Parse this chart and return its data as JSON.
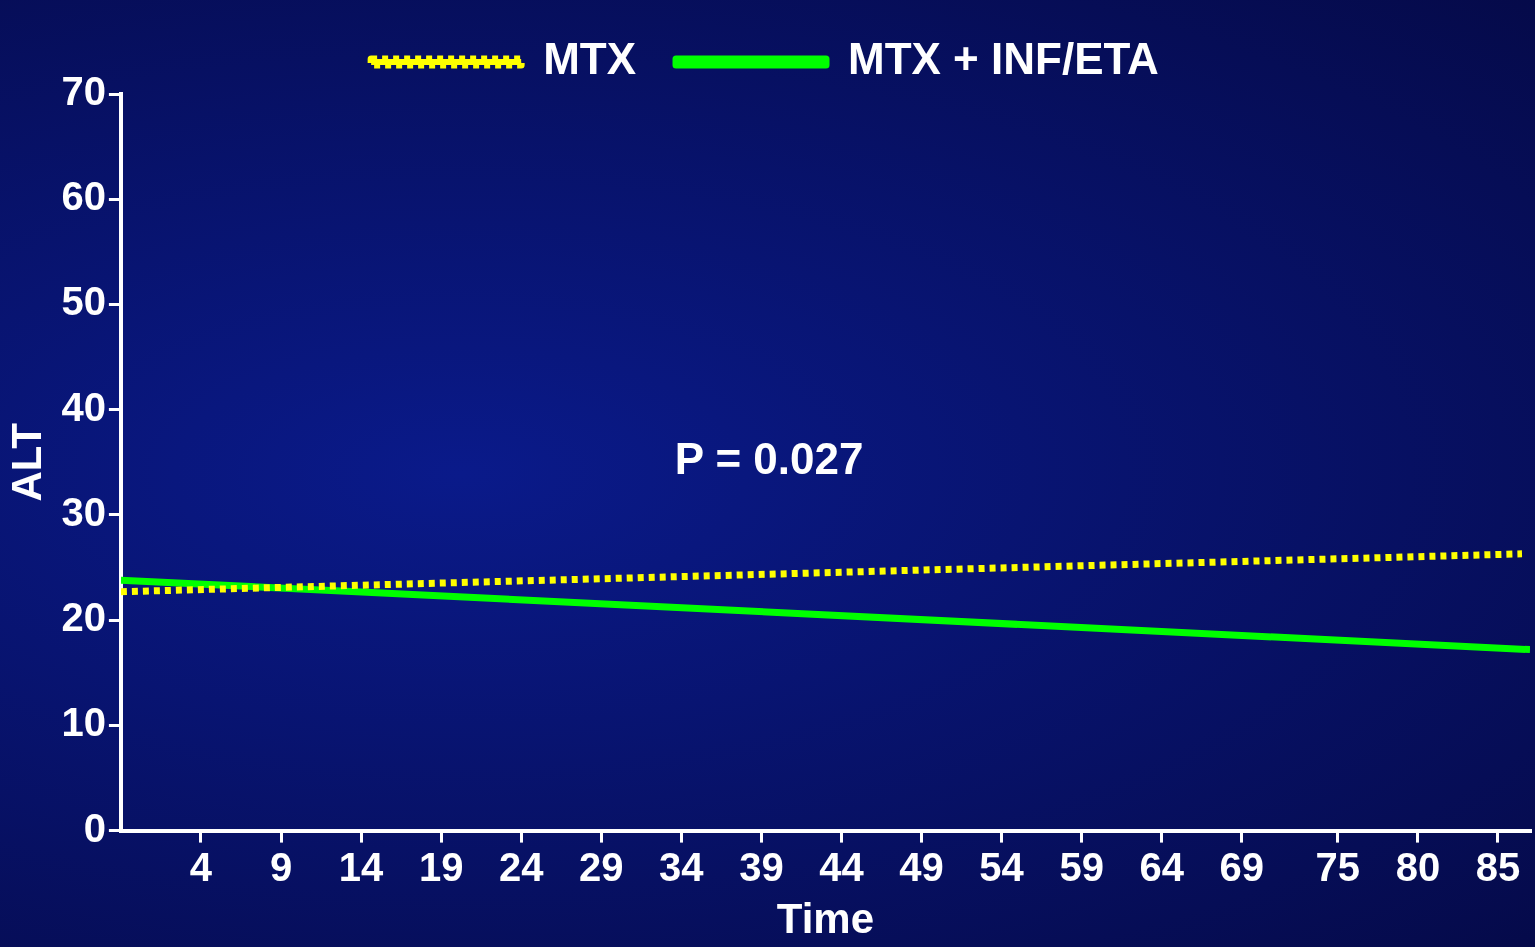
{
  "chart_data": {
    "type": "line",
    "xlabel": "Time",
    "ylabel": "ALT",
    "xlim": [
      -1,
      87
    ],
    "xticks": [
      4,
      9,
      14,
      19,
      24,
      29,
      34,
      39,
      44,
      49,
      54,
      59,
      64,
      69,
      75,
      80,
      85
    ],
    "ylim": [
      0,
      70
    ],
    "yticks": [
      0,
      10,
      20,
      30,
      40,
      50,
      60,
      70
    ],
    "series": [
      {
        "name": "MTX",
        "color": "#ffff00",
        "x": [
          -1,
          86.5
        ],
        "values": [
          22.7,
          26.3
        ],
        "line_style": "dotted"
      },
      {
        "name": "MTX + INF/ETA",
        "color": "#00ff00",
        "x": [
          -1,
          87
        ],
        "values": [
          23.8,
          17.2
        ],
        "line_style": "solid"
      }
    ],
    "annotations": [
      "P = 0.027"
    ],
    "grid": false,
    "legend": "top",
    "marker": "none"
  }
}
